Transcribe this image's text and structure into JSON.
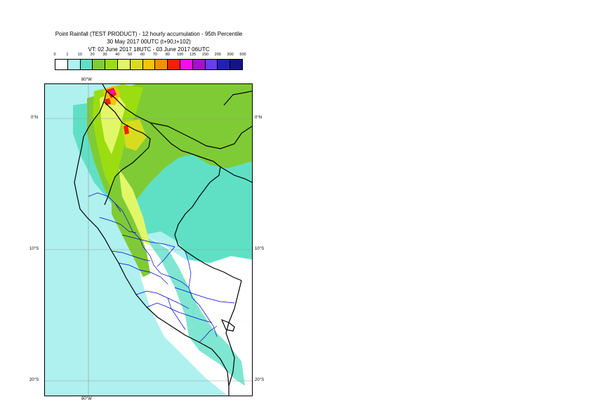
{
  "title": {
    "line1": "Point Rainfall (TEST PRODUCT) - 12 hourly accumulation - 95th Percentile",
    "line2": "30 May 2017 00UTC (t+90,t+102)",
    "line3": "VT: 02 June 2017 18UTC - 03 June 2017 06UTC"
  },
  "legend": {
    "labels": [
      "0",
      "1",
      "10",
      "20",
      "30",
      "40",
      "50",
      "60",
      "70",
      "80",
      "100",
      "125",
      "150",
      "200",
      "300",
      "500"
    ],
    "colors": [
      "#ffffff",
      "#aef1ef",
      "#5fe0c5",
      "#7fcb35",
      "#9bdd10",
      "#e2f768",
      "#d8dc1f",
      "#f4c20f",
      "#f59000",
      "#fa1e00",
      "#f50cf2",
      "#a80fcb",
      "#6a3cf0",
      "#2020b8",
      "#14148a"
    ]
  },
  "map": {
    "lat_labels": [
      {
        "text": "0°N",
        "lat": 0
      },
      {
        "text": "10°S",
        "lat": -10
      },
      {
        "text": "20°S",
        "lat": -20
      }
    ],
    "lon_labels": [
      {
        "text": "80°W",
        "lon": -80
      }
    ],
    "extent": {
      "lon_min": -83.4,
      "lon_max": -67.6,
      "lat_min": -21.0,
      "lat_max": 2.6
    },
    "colors": {
      "sea": "#aef1ef",
      "land_dry": "#ffffff",
      "light": "#aef1ef",
      "teal": "#5fe0c5",
      "green": "#7fcb35",
      "lime": "#9bdd10",
      "yellow": "#e2f768",
      "olive": "#d8dc1f",
      "orange": "#f4c20f",
      "red": "#fa1e00",
      "magenta": "#f50cf2",
      "border": "#000000",
      "regions": "#0000cc",
      "gridline": "#9a9a9a"
    }
  }
}
